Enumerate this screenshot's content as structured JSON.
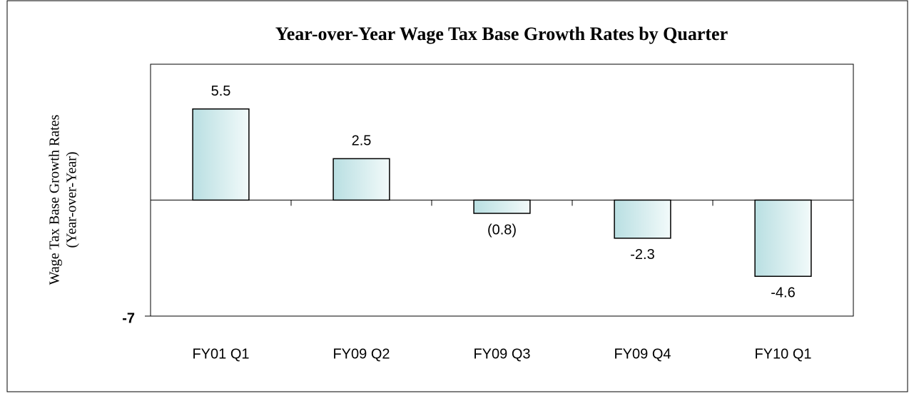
{
  "chart_data": {
    "type": "bar",
    "title": "Year-over-Year Wage Tax Base Growth Rates by Quarter",
    "ylabel": [
      "Wage Tax Base Growth Rates",
      "(Year-over-Year)"
    ],
    "categories": [
      "FY01 Q1",
      "FY09 Q2",
      "FY09 Q3",
      "FY09 Q4",
      "FY10 Q1"
    ],
    "values": [
      5.5,
      2.5,
      -0.8,
      -2.3,
      -4.6
    ],
    "value_labels": [
      "5.5",
      "2.5",
      "(0.8)",
      "-2.3",
      "-4.6"
    ],
    "color": "#c6e4e6",
    "ylim": [
      -7,
      8.2
    ],
    "yticks": [
      -7
    ],
    "grid": false
  }
}
